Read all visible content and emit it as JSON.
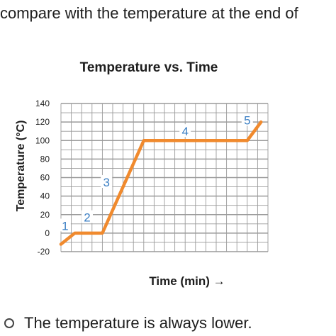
{
  "question": {
    "text": "compare with the temperature at the end of"
  },
  "answer_option": {
    "text": "The temperature is always lower."
  },
  "colors": {
    "line": "#f08a2e",
    "label": "#3b7fc4",
    "grid": "#9a9a9a",
    "text": "#1d1d1d"
  },
  "chart_data": {
    "type": "line",
    "title": "Temperature vs. Time",
    "xlabel": "Time (min) →",
    "ylabel": "Temperature (°C)",
    "ylim": [
      -20,
      140
    ],
    "yticks": [
      140,
      120,
      100,
      80,
      60,
      40,
      20,
      0,
      -20
    ],
    "xlim": [
      0,
      15
    ],
    "grid": true,
    "series": [
      {
        "x": [
          0,
          1,
          3,
          6,
          13.5,
          14.5
        ],
        "y": [
          -12,
          0,
          0,
          100,
          100,
          120
        ]
      }
    ],
    "segment_labels": [
      {
        "text": "1",
        "x": 0.3,
        "y": 8
      },
      {
        "text": "2",
        "x": 1.9,
        "y": 17
      },
      {
        "text": "3",
        "x": 3.3,
        "y": 55
      },
      {
        "text": "4",
        "x": 9.0,
        "y": 110
      },
      {
        "text": "5",
        "x": 13.5,
        "y": 122
      }
    ]
  }
}
